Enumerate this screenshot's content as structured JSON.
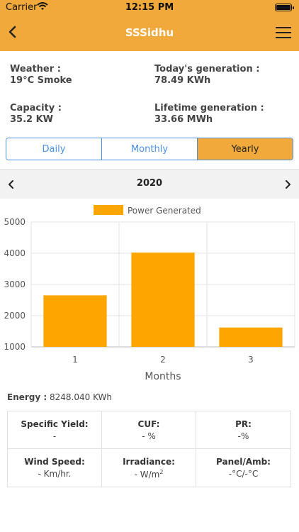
{
  "status_bar": {
    "carrier": "Carrier",
    "time": "12:15 PM"
  },
  "nav": {
    "title": "SSSidhu"
  },
  "info": {
    "weather_label": "Weather :",
    "weather_value": "19°C Smoke",
    "today_label": "Today's generation :",
    "today_value": "78.49 KWh",
    "capacity_label": "Capacity :",
    "capacity_value": "35.2 KW",
    "lifetime_label": "Lifetime generation :",
    "lifetime_value": "33.66 MWh"
  },
  "segments": {
    "daily": "Daily",
    "monthly": "Monthly",
    "yearly": "Yearly",
    "selected": "Yearly"
  },
  "period": {
    "year": "2020"
  },
  "chart_data": {
    "type": "bar",
    "categories": [
      "1",
      "2",
      "3"
    ],
    "series": [
      {
        "name": "Power Generated",
        "values": [
          2650,
          4020,
          1620
        ]
      }
    ],
    "xlabel": "Months",
    "ylabel": "",
    "ylim": [
      1000,
      5000
    ],
    "yticks": [
      "1000",
      "2000",
      "3000",
      "4000",
      "5000"
    ],
    "bar_color": "#ffa500",
    "legend_position": "top-center",
    "grid": true
  },
  "energy": {
    "label": "Energy :",
    "value": "8248.040 KWh"
  },
  "metrics": {
    "specific_yield_label": "Specific Yield:",
    "specific_yield_value": "-",
    "cuf_label": "CUF:",
    "cuf_value": "- %",
    "pr_label": "PR:",
    "pr_value": "-%",
    "wind_label": "Wind Speed:",
    "wind_value": "- Km/hr.",
    "irradiance_label": "Irradiance:",
    "irradiance_value": "- W/m",
    "irradiance_exp": "2",
    "panel_label": "Panel/Amb:",
    "panel_value": "-°C/-°C"
  },
  "colors": {
    "accent": "#f0a93a",
    "segment_border": "#4a90e2"
  }
}
